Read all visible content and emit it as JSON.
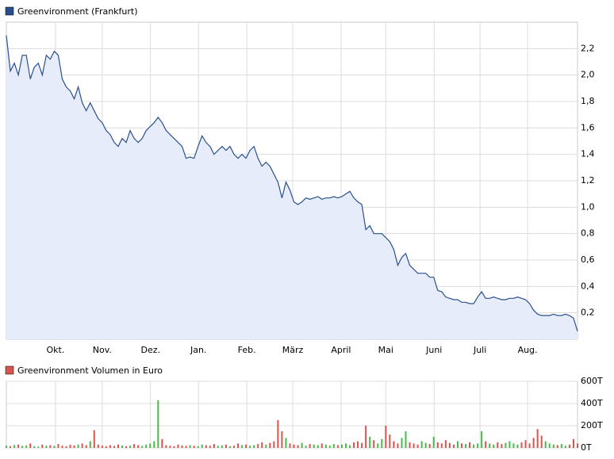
{
  "chart_data": [
    {
      "type": "area",
      "series": [
        {
          "name": "Greenvironment (Frankfurt)",
          "color": "#2a4f8f",
          "fill": "#e6ecf9",
          "values": [
            2.3,
            2.03,
            2.09,
            2.0,
            2.15,
            2.15,
            1.97,
            2.06,
            2.09,
            2.0,
            2.15,
            2.12,
            2.18,
            2.15,
            1.97,
            1.91,
            1.88,
            1.82,
            1.91,
            1.79,
            1.73,
            1.79,
            1.73,
            1.67,
            1.64,
            1.58,
            1.55,
            1.49,
            1.46,
            1.52,
            1.49,
            1.58,
            1.52,
            1.49,
            1.52,
            1.58,
            1.61,
            1.64,
            1.68,
            1.64,
            1.58,
            1.55,
            1.52,
            1.49,
            1.46,
            1.37,
            1.38,
            1.37,
            1.46,
            1.54,
            1.49,
            1.46,
            1.4,
            1.43,
            1.46,
            1.43,
            1.46,
            1.4,
            1.37,
            1.4,
            1.37,
            1.43,
            1.46,
            1.37,
            1.31,
            1.34,
            1.31,
            1.25,
            1.19,
            1.07,
            1.19,
            1.13,
            1.04,
            1.02,
            1.04,
            1.07,
            1.06,
            1.07,
            1.08,
            1.06,
            1.07,
            1.07,
            1.08,
            1.07,
            1.08,
            1.1,
            1.12,
            1.07,
            1.04,
            1.02,
            0.83,
            0.86,
            0.8,
            0.8,
            0.8,
            0.77,
            0.74,
            0.68,
            0.56,
            0.62,
            0.65,
            0.56,
            0.53,
            0.5,
            0.5,
            0.5,
            0.47,
            0.47,
            0.37,
            0.36,
            0.32,
            0.31,
            0.3,
            0.3,
            0.28,
            0.28,
            0.27,
            0.27,
            0.32,
            0.36,
            0.31,
            0.31,
            0.32,
            0.31,
            0.3,
            0.3,
            0.31,
            0.31,
            0.32,
            0.31,
            0.3,
            0.27,
            0.22,
            0.19,
            0.18,
            0.18,
            0.18,
            0.19,
            0.18,
            0.18,
            0.19,
            0.18,
            0.16,
            0.06
          ]
        }
      ],
      "xlim": [
        0,
        143
      ],
      "xticks": [
        {
          "value": 12.3,
          "label": "Okt."
        },
        {
          "value": 24.0,
          "label": "Nov."
        },
        {
          "value": 36.1,
          "label": "Dez."
        },
        {
          "value": 48.1,
          "label": "Jan."
        },
        {
          "value": 60.2,
          "label": "Feb."
        },
        {
          "value": 71.7,
          "label": "März"
        },
        {
          "value": 83.8,
          "label": "April"
        },
        {
          "value": 95.0,
          "label": "Mai"
        },
        {
          "value": 107.1,
          "label": "Juni"
        },
        {
          "value": 118.6,
          "label": "Juli"
        },
        {
          "value": 130.5,
          "label": "Aug."
        }
      ],
      "ylim": [
        0,
        2.4
      ],
      "yticks": [
        {
          "value": 0.2,
          "label": "0,2"
        },
        {
          "value": 0.4,
          "label": "0,4"
        },
        {
          "value": 0.6,
          "label": "0,6"
        },
        {
          "value": 0.8,
          "label": "0,8"
        },
        {
          "value": 1.0,
          "label": "1,0"
        },
        {
          "value": 1.2,
          "label": "1,2"
        },
        {
          "value": 1.4,
          "label": "1,4"
        },
        {
          "value": 1.6,
          "label": "1,6"
        },
        {
          "value": 1.8,
          "label": "1,8"
        },
        {
          "value": 2.0,
          "label": "2,0"
        },
        {
          "value": 2.2,
          "label": "2,2"
        }
      ],
      "grid": true
    },
    {
      "type": "bar",
      "series": [
        {
          "name": "Greenvironment Volumen in Euro",
          "color": "#d9534f",
          "values": [
            20000,
            15000,
            25000,
            30000,
            18000,
            22000,
            40000,
            15000,
            12000,
            30000,
            20000,
            25000,
            18000,
            35000,
            20000,
            15000,
            28000,
            22000,
            30000,
            40000,
            25000,
            60000,
            160000,
            30000,
            20000,
            15000,
            25000,
            18000,
            30000,
            22000,
            15000,
            20000,
            35000,
            25000,
            18000,
            30000,
            40000,
            60000,
            430000,
            80000,
            25000,
            20000,
            15000,
            30000,
            22000,
            18000,
            25000,
            20000,
            15000,
            30000,
            25000,
            20000,
            35000,
            18000,
            22000,
            30000,
            15000,
            20000,
            40000,
            25000,
            30000,
            20000,
            25000,
            35000,
            50000,
            30000,
            45000,
            60000,
            250000,
            150000,
            90000,
            40000,
            30000,
            25000,
            45000,
            20000,
            35000,
            30000,
            25000,
            40000,
            30000,
            20000,
            35000,
            25000,
            30000,
            40000,
            25000,
            50000,
            60000,
            45000,
            200000,
            100000,
            70000,
            40000,
            80000,
            200000,
            120000,
            60000,
            40000,
            90000,
            150000,
            50000,
            40000,
            30000,
            60000,
            45000,
            35000,
            100000,
            50000,
            40000,
            70000,
            45000,
            30000,
            60000,
            40000,
            35000,
            50000,
            30000,
            40000,
            150000,
            60000,
            40000,
            30000,
            50000,
            35000,
            45000,
            60000,
            40000,
            30000,
            50000,
            70000,
            40000,
            90000,
            170000,
            110000,
            60000,
            40000,
            30000,
            25000,
            35000,
            20000,
            30000,
            80000,
            40000
          ]
        }
      ],
      "up_color": "#4cb84c",
      "xlim": [
        0,
        143
      ],
      "ylim": [
        0,
        600000
      ],
      "yticks": [
        {
          "value": 0,
          "label": "0T"
        },
        {
          "value": 200000,
          "label": "200T"
        },
        {
          "value": 400000,
          "label": "400T"
        },
        {
          "value": 600000,
          "label": "600T"
        }
      ],
      "grid": true
    }
  ]
}
